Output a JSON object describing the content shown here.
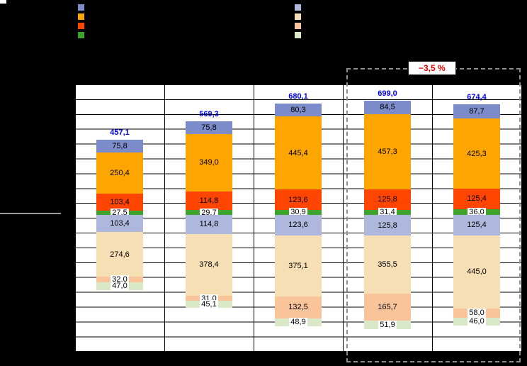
{
  "annotation": {
    "delta_label": "−3,5 %"
  },
  "legend": {
    "left": [
      {
        "name": "series-periwinkle",
        "color": "#7C8BC9",
        "label": ""
      },
      {
        "name": "series-orange",
        "color": "#FFA500",
        "label": ""
      },
      {
        "name": "series-orangered",
        "color": "#FF4500",
        "label": ""
      },
      {
        "name": "series-green",
        "color": "#3FA42C",
        "label": ""
      }
    ],
    "right": [
      {
        "name": "series-light-periwinkle",
        "color": "#AEB8DC",
        "label": ""
      },
      {
        "name": "series-cream",
        "color": "#F7DFB5",
        "label": ""
      },
      {
        "name": "series-peach",
        "color": "#F9C499",
        "label": ""
      },
      {
        "name": "series-light-green",
        "color": "#D9E8C6",
        "label": ""
      }
    ]
  },
  "chart_data": {
    "type": "bar",
    "subtype": "diverging-stacked",
    "grid": true,
    "legend_position": "top",
    "categories": [
      "",
      "",
      "",
      "",
      ""
    ],
    "totals": [
      457.1,
      569.3,
      680.1,
      699.0,
      674.4
    ],
    "total_label_color": "#0000EE",
    "upper_series": [
      {
        "name": "periwinkle",
        "color": "#7C8BC9",
        "values": [
          75.8,
          75.8,
          80.3,
          84.5,
          87.7
        ]
      },
      {
        "name": "orange",
        "color": "#FFA500",
        "values": [
          250.4,
          349.0,
          445.4,
          457.3,
          425.3
        ]
      },
      {
        "name": "orangered",
        "color": "#FF4500",
        "values": [
          103.4,
          114.8,
          123.6,
          125.8,
          125.4
        ]
      },
      {
        "name": "green",
        "color": "#3FA42C",
        "values": [
          27.5,
          29.7,
          30.9,
          31.4,
          36.0
        ]
      }
    ],
    "lower_series": [
      {
        "name": "light-periwinkle",
        "color": "#AEB8DC",
        "values": [
          103.4,
          114.8,
          123.6,
          125.8,
          125.4
        ]
      },
      {
        "name": "cream",
        "color": "#F7DFB5",
        "values": [
          274.6,
          378.4,
          375.1,
          355.5,
          445.0
        ]
      },
      {
        "name": "peach",
        "color": "#F9C499",
        "values": [
          32.0,
          31.0,
          132.5,
          165.7,
          58.0
        ]
      },
      {
        "name": "light-green",
        "color": "#D9E8C6",
        "values": [
          47.0,
          45.1,
          48.9,
          51.9,
          46.0
        ]
      }
    ],
    "annotation": "−3,5 %"
  }
}
